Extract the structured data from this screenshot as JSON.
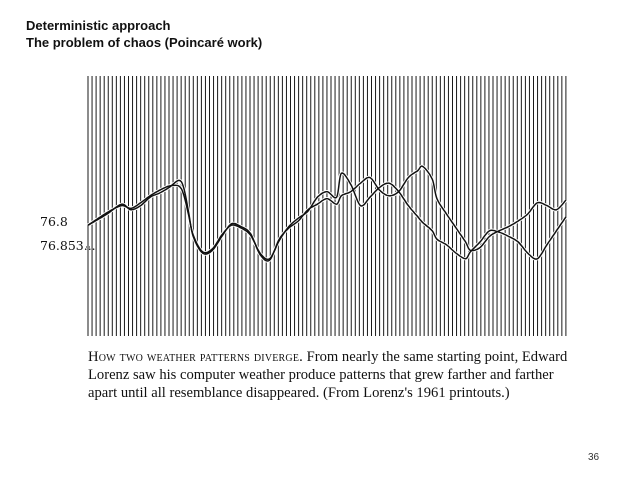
{
  "slide": {
    "title_line1": "Deterministic approach",
    "title_line2": "The problem of chaos (Poincaré work)",
    "page_number": "36"
  },
  "caption": {
    "lead": "How two weather patterns diverge.",
    "body": "From nearly the same starting point, Edward Lorenz saw his computer weather produce patterns that grew farther and farther apart until all resemblance disappeared. (From Lorenz's 1961 printouts.)"
  },
  "chart_data": {
    "type": "line",
    "title": "",
    "xlabel": "",
    "ylabel": "",
    "grid": "dense vertical lines",
    "xlim": [
      0,
      100
    ],
    "ylim": [
      0,
      100
    ],
    "annotations": [
      {
        "text": "76.8",
        "series": 0
      },
      {
        "text": "76.853...",
        "series": 1
      }
    ],
    "series": [
      {
        "x": [
          0,
          4,
          7,
          9,
          11,
          13,
          15,
          17,
          19,
          20,
          21,
          22,
          24,
          26,
          28,
          30,
          32,
          34,
          36,
          38,
          40,
          42,
          44,
          46,
          48,
          50,
          52,
          53,
          55,
          57,
          59,
          61,
          63,
          65,
          67,
          69,
          70,
          72,
          73,
          75,
          77,
          79,
          80,
          82,
          84,
          86,
          88,
          90,
          92,
          94,
          96,
          98,
          100
        ],
        "y": [
          42,
          50,
          57,
          53,
          56,
          62,
          65,
          69,
          74,
          69,
          52,
          34,
          22,
          24,
          34,
          43,
          41,
          36,
          21,
          17,
          32,
          40,
          45,
          53,
          57,
          61,
          57,
          63,
          66,
          72,
          76,
          67,
          63,
          66,
          76,
          81,
          84,
          75,
          61,
          50,
          40,
          30,
          24,
          26,
          34,
          38,
          41,
          45,
          50,
          58,
          56,
          53,
          60
        ]
      },
      {
        "x": [
          0,
          4,
          7,
          9,
          11,
          13,
          15,
          17,
          19,
          20,
          21,
          22,
          24,
          26,
          28,
          30,
          32,
          34,
          36,
          38,
          40,
          42,
          44,
          46,
          48,
          50,
          52,
          53,
          55,
          57,
          59,
          61,
          63,
          65,
          67,
          69,
          70,
          72,
          73,
          75,
          77,
          79,
          80,
          82,
          84,
          86,
          88,
          90,
          92,
          94,
          96,
          98,
          100
        ],
        "y": [
          42,
          51,
          56,
          54,
          58,
          63,
          67,
          70,
          70,
          64,
          50,
          35,
          23,
          25,
          35,
          42,
          40,
          35,
          22,
          18,
          31,
          41,
          47,
          52,
          62,
          66,
          62,
          79,
          71,
          56,
          62,
          69,
          72,
          66,
          56,
          48,
          44,
          38,
          32,
          28,
          22,
          18,
          23,
          30,
          38,
          37,
          34,
          30,
          22,
          18,
          28,
          38,
          48
        ]
      }
    ]
  }
}
